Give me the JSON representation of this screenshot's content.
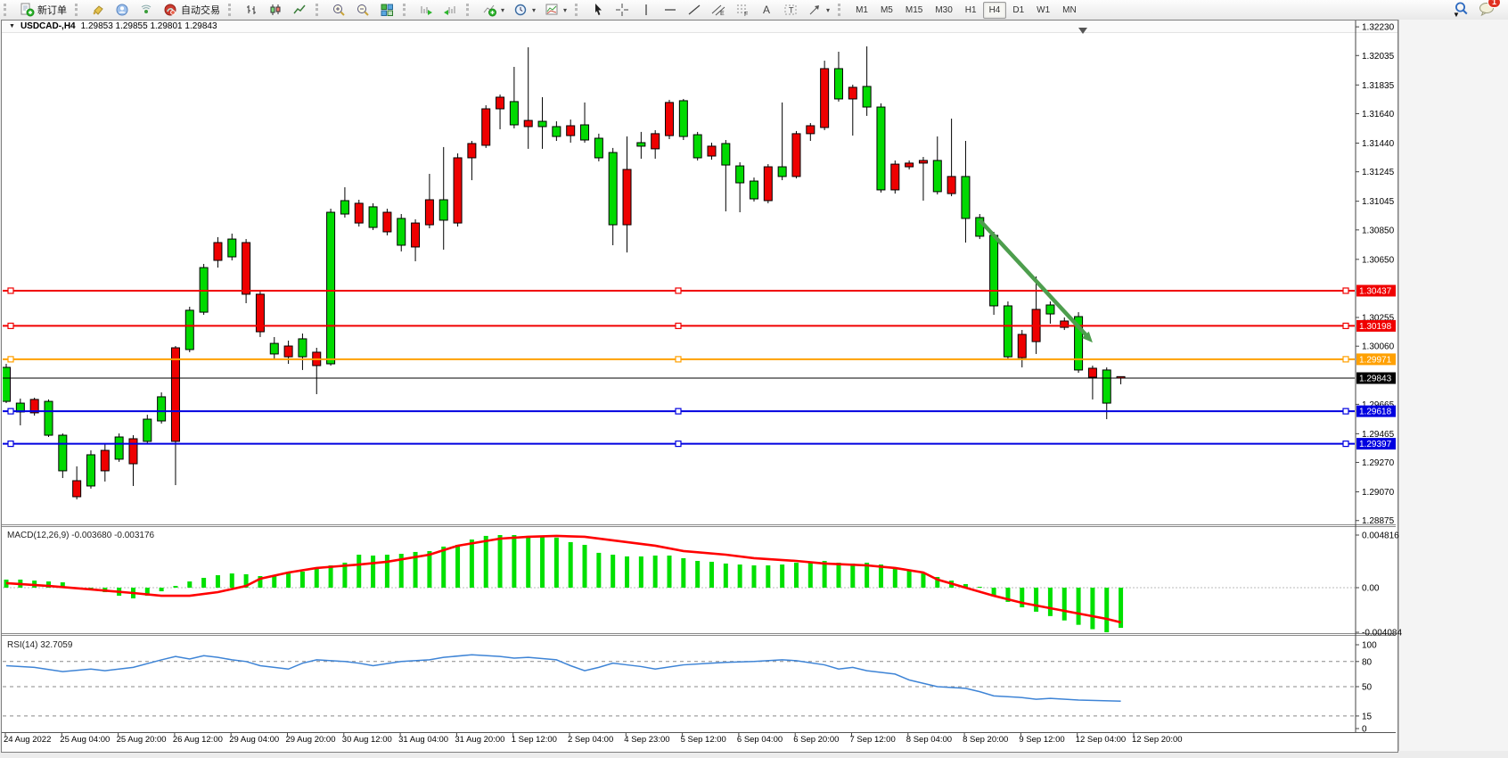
{
  "toolbar": {
    "groups": [
      {
        "items": [
          {
            "name": "new-order-button",
            "icon": "new-order",
            "label": "新订单"
          }
        ]
      },
      {
        "items": [
          {
            "name": "styler-button",
            "icon": "paint"
          },
          {
            "name": "profile-button",
            "icon": "profile"
          },
          {
            "name": "signals-button",
            "icon": "signal"
          },
          {
            "name": "autotrading-button",
            "icon": "autotrade",
            "label": "自动交易"
          }
        ]
      },
      {
        "items": [
          {
            "name": "bar-chart-button",
            "icon": "bars"
          },
          {
            "name": "candle-chart-button",
            "icon": "candles"
          },
          {
            "name": "line-chart-button",
            "icon": "linechart"
          }
        ]
      },
      {
        "items": [
          {
            "name": "zoom-in-button",
            "icon": "zoomin"
          },
          {
            "name": "zoom-out-button",
            "icon": "zoomout"
          },
          {
            "name": "tile-windows-button",
            "icon": "tile"
          }
        ]
      },
      {
        "items": [
          {
            "name": "auto-scroll-button",
            "icon": "autoscroll"
          },
          {
            "name": "chart-shift-button",
            "icon": "shift"
          }
        ]
      },
      {
        "items": [
          {
            "name": "indicators-button",
            "icon": "indicators",
            "caret": true
          },
          {
            "name": "periods-button",
            "icon": "clock",
            "caret": true
          },
          {
            "name": "templates-button",
            "icon": "template",
            "caret": true
          }
        ]
      },
      {
        "items": [
          {
            "name": "cursor-button",
            "icon": "cursor"
          },
          {
            "name": "crosshair-button",
            "icon": "crosshair"
          },
          {
            "name": "vline-button",
            "icon": "vline"
          },
          {
            "name": "hline-button",
            "icon": "hline"
          },
          {
            "name": "trendline-button",
            "icon": "trend"
          },
          {
            "name": "channel-button",
            "icon": "channel"
          },
          {
            "name": "fibonacci-button",
            "icon": "fibo"
          },
          {
            "name": "text-button",
            "icon": "textA"
          },
          {
            "name": "label-button",
            "icon": "labelT"
          },
          {
            "name": "shapes-button",
            "icon": "shapes",
            "caret": true
          }
        ]
      }
    ],
    "timeframes": [
      "M1",
      "M5",
      "M15",
      "M30",
      "H1",
      "H4",
      "D1",
      "W1",
      "MN"
    ],
    "active_timeframe": "H4",
    "search_badge": "1"
  },
  "window": {
    "symbol_title": "USDCAD-,H4",
    "quote_line": "1.29853 1.29855 1.29801 1.29843"
  },
  "chart_data": {
    "type": "candlestick",
    "symbol": "USDCAD-",
    "timeframe": "H4",
    "ohlc": [
      [
        1.29685,
        1.2994,
        1.29673,
        1.29916
      ],
      [
        1.29613,
        1.29704,
        1.29522,
        1.29673
      ],
      [
        1.29698,
        1.2971,
        1.29588,
        1.29607
      ],
      [
        1.29455,
        1.29698,
        1.29443,
        1.29685
      ],
      [
        1.29213,
        1.29467,
        1.29164,
        1.29455
      ],
      [
        1.29146,
        1.29243,
        1.29019,
        1.29037
      ],
      [
        1.2911,
        1.29352,
        1.29092,
        1.29322
      ],
      [
        1.29352,
        1.29395,
        1.2914,
        1.29213
      ],
      [
        1.29292,
        1.29467,
        1.29274,
        1.29443
      ],
      [
        1.29431,
        1.29455,
        1.2911,
        1.29261
      ],
      [
        1.29413,
        1.29594,
        1.29395,
        1.29564
      ],
      [
        1.29552,
        1.29746,
        1.29534,
        1.29716
      ],
      [
        1.30049,
        1.30061,
        1.29116,
        1.29413
      ],
      [
        1.30037,
        1.30328,
        1.30019,
        1.30304
      ],
      [
        1.30291,
        1.30619,
        1.30273,
        1.30594
      ],
      [
        1.30764,
        1.30801,
        1.30594,
        1.30643
      ],
      [
        1.30667,
        1.30825,
        1.30643,
        1.30788
      ],
      [
        1.30764,
        1.30788,
        1.30352,
        1.30413
      ],
      [
        1.30413,
        1.30437,
        1.30122,
        1.30158
      ],
      [
        1.30007,
        1.30122,
        1.29976,
        1.30079
      ],
      [
        1.30061,
        1.30098,
        1.2994,
        1.29988
      ],
      [
        1.29988,
        1.30146,
        1.29898,
        1.3011
      ],
      [
        1.30019,
        1.30049,
        1.29734,
        1.29928
      ],
      [
        1.2994,
        1.30994,
        1.29928,
        1.3097
      ],
      [
        1.30958,
        1.3114,
        1.30934,
        1.31049
      ],
      [
        1.31031,
        1.31055,
        1.30873,
        1.30897
      ],
      [
        1.30867,
        1.31031,
        1.30849,
        1.31007
      ],
      [
        1.3097,
        1.30994,
        1.30813,
        1.30837
      ],
      [
        1.30746,
        1.30958,
        1.30704,
        1.30928
      ],
      [
        1.30897,
        1.30922,
        1.30637,
        1.30734
      ],
      [
        1.31055,
        1.31231,
        1.30861,
        1.30885
      ],
      [
        1.30916,
        1.31413,
        1.30716,
        1.31055
      ],
      [
        1.3134,
        1.3137,
        1.30873,
        1.30897
      ],
      [
        1.31437,
        1.31455,
        1.31188,
        1.3134
      ],
      [
        1.31673,
        1.31697,
        1.31407,
        1.31425
      ],
      [
        1.31752,
        1.3177,
        1.31534,
        1.31673
      ],
      [
        1.31564,
        1.31958,
        1.3154,
        1.31722
      ],
      [
        1.31594,
        1.32091,
        1.31401,
        1.31552
      ],
      [
        1.31552,
        1.31752,
        1.31401,
        1.31588
      ],
      [
        1.31485,
        1.31588,
        1.31455,
        1.31552
      ],
      [
        1.31558,
        1.316,
        1.31443,
        1.31491
      ],
      [
        1.31461,
        1.31716,
        1.31443,
        1.31564
      ],
      [
        1.3134,
        1.31504,
        1.31316,
        1.31473
      ],
      [
        1.30885,
        1.31407,
        1.30746,
        1.31376
      ],
      [
        1.31261,
        1.31485,
        1.30697,
        1.30885
      ],
      [
        1.31419,
        1.31516,
        1.31334,
        1.31443
      ],
      [
        1.31504,
        1.31528,
        1.31334,
        1.31401
      ],
      [
        1.31716,
        1.31734,
        1.31467,
        1.31491
      ],
      [
        1.31485,
        1.3174,
        1.31461,
        1.31728
      ],
      [
        1.3134,
        1.31516,
        1.31322,
        1.31497
      ],
      [
        1.31419,
        1.31443,
        1.31328,
        1.31352
      ],
      [
        1.31291,
        1.31461,
        1.30976,
        1.31437
      ],
      [
        1.3117,
        1.3131,
        1.3097,
        1.31285
      ],
      [
        1.31061,
        1.31206,
        1.31043,
        1.31182
      ],
      [
        1.31279,
        1.31297,
        1.31031,
        1.31049
      ],
      [
        1.31213,
        1.31716,
        1.31188,
        1.31279
      ],
      [
        1.31504,
        1.31522,
        1.312,
        1.31213
      ],
      [
        1.31558,
        1.31576,
        1.31455,
        1.31504
      ],
      [
        1.31946,
        1.32,
        1.31528,
        1.31546
      ],
      [
        1.3174,
        1.32061,
        1.31722,
        1.31946
      ],
      [
        1.31819,
        1.31837,
        1.31491,
        1.3174
      ],
      [
        1.31685,
        1.32097,
        1.31625,
        1.31825
      ],
      [
        1.31122,
        1.3171,
        1.31104,
        1.31685
      ],
      [
        1.31297,
        1.31322,
        1.31097,
        1.31122
      ],
      [
        1.31304,
        1.31322,
        1.31261,
        1.31279
      ],
      [
        1.31322,
        1.31346,
        1.31049,
        1.31304
      ],
      [
        1.3111,
        1.31485,
        1.31091,
        1.31322
      ],
      [
        1.31213,
        1.31606,
        1.31079,
        1.31097
      ],
      [
        1.30928,
        1.31455,
        1.30764,
        1.31213
      ],
      [
        1.30807,
        1.30958,
        1.30788,
        1.30934
      ],
      [
        1.30334,
        1.30837,
        1.30273,
        1.30813
      ],
      [
        1.29988,
        1.30364,
        1.2997,
        1.30334
      ],
      [
        1.3014,
        1.3017,
        1.29916,
        1.29982
      ],
      [
        1.3031,
        1.30534,
        1.30007,
        1.30091
      ],
      [
        1.30279,
        1.30364,
        1.30213,
        1.3034
      ],
      [
        1.30231,
        1.30255,
        1.3017,
        1.30188
      ],
      [
        1.29898,
        1.30291,
        1.29879,
        1.30261
      ],
      [
        1.2991,
        1.29928,
        1.29698,
        1.29849
      ],
      [
        1.29673,
        1.29916,
        1.29564,
        1.29898
      ],
      [
        1.29853,
        1.29855,
        1.29801,
        1.29843
      ]
    ],
    "current_price": 1.29843,
    "price_axis_ticks": [
      "1.32230",
      "1.32035",
      "1.31835",
      "1.31640",
      "1.31440",
      "1.31245",
      "1.31045",
      "1.30850",
      "1.30650",
      "1.30255",
      "1.30060",
      "1.29665",
      "1.29465",
      "1.29270",
      "1.29070",
      "1.28875"
    ],
    "price_tags": [
      {
        "value": "1.30437",
        "color": "#F00000"
      },
      {
        "value": "1.30198",
        "color": "#F00000"
      },
      {
        "value": "1.29971",
        "color": "#FFA000"
      },
      {
        "value": "1.29843",
        "color": "#000000"
      },
      {
        "value": "1.29618",
        "color": "#0000E0"
      },
      {
        "value": "1.29397",
        "color": "#0000E0"
      }
    ],
    "hlines": [
      {
        "price": 1.30437,
        "color": "#F00000"
      },
      {
        "price": 1.30198,
        "color": "#F00000"
      },
      {
        "price": 1.29971,
        "color": "#FFA000"
      },
      {
        "price": 1.29618,
        "color": "#0000E0"
      },
      {
        "price": 1.29397,
        "color": "#0000E0"
      }
    ],
    "arrow": {
      "from_bar": 69,
      "from_price": 1.30916,
      "to_bar": 77,
      "to_price": 1.30085,
      "color": "#4D9E4D"
    },
    "macd": {
      "label": "MACD(12,26,9) -0.003680 -0.003176",
      "axis_labels": [
        "0.004816",
        "0.00",
        "-0.004084"
      ],
      "axis_values": [
        0.004816,
        0,
        -0.004084
      ],
      "histogram": [
        0.00074,
        0.00074,
        0.00065,
        0.00057,
        0.00049,
        -8e-05,
        -0.00016,
        -0.00041,
        -0.00074,
        -0.00098,
        -0.00074,
        -0.00033,
        0.00016,
        0.00057,
        0.0009,
        0.00114,
        0.0013,
        0.00123,
        0.00106,
        0.00114,
        0.0013,
        0.00147,
        0.00172,
        0.00204,
        0.00229,
        0.00302,
        0.00294,
        0.00302,
        0.0031,
        0.00327,
        0.00335,
        0.00376,
        0.00392,
        0.00441,
        0.00474,
        0.004816,
        0.004816,
        0.00474,
        0.00466,
        0.00458,
        0.00417,
        0.00392,
        0.00319,
        0.00302,
        0.00286,
        0.00286,
        0.00294,
        0.00294,
        0.0027,
        0.00245,
        0.00237,
        0.00221,
        0.00212,
        0.00204,
        0.00204,
        0.00212,
        0.00229,
        0.00237,
        0.00245,
        0.00229,
        0.00221,
        0.00229,
        0.00212,
        0.00188,
        0.00163,
        0.0013,
        0.00098,
        0.00065,
        0.00033,
        8e-05,
        -0.0008,
        -0.0013,
        -0.0018,
        -0.0022,
        -0.0026,
        -0.003,
        -0.0034,
        -0.0038,
        -0.004084,
        -0.00368
      ],
      "signal": [
        [
          0,
          0.00041
        ],
        [
          3,
          0.00016
        ],
        [
          6,
          -0.00016
        ],
        [
          9,
          -0.00049
        ],
        [
          11,
          -0.00074
        ],
        [
          13,
          -0.00074
        ],
        [
          15,
          -0.00041
        ],
        [
          17,
          0.00016
        ],
        [
          18,
          0.00082
        ],
        [
          20,
          0.00139
        ],
        [
          22,
          0.0018
        ],
        [
          25,
          0.00212
        ],
        [
          27,
          0.00237
        ],
        [
          30,
          0.00302
        ],
        [
          32,
          0.00384
        ],
        [
          35,
          0.00449
        ],
        [
          37,
          0.00466
        ],
        [
          39,
          0.00474
        ],
        [
          41,
          0.00466
        ],
        [
          43,
          0.00433
        ],
        [
          46,
          0.00384
        ],
        [
          48,
          0.00335
        ],
        [
          51,
          0.00302
        ],
        [
          53,
          0.0027
        ],
        [
          56,
          0.00245
        ],
        [
          58,
          0.00221
        ],
        [
          61,
          0.00204
        ],
        [
          63,
          0.0018
        ],
        [
          65,
          0.00139
        ],
        [
          66,
          0.00074
        ],
        [
          68,
          0
        ],
        [
          70,
          -0.00074
        ],
        [
          72,
          -0.00139
        ],
        [
          74,
          -0.00188
        ],
        [
          76,
          -0.00237
        ],
        [
          78,
          -0.00286
        ],
        [
          79,
          -0.003176
        ]
      ]
    },
    "rsi": {
      "label": "RSI(14) 32.7059",
      "value": 32.7059,
      "axis_labels": [
        "100",
        "80",
        "50",
        "15",
        "0"
      ],
      "axis_values": [
        100,
        80,
        50,
        15,
        0
      ],
      "dashed_levels": [
        80,
        50,
        15
      ],
      "points": [
        [
          0,
          75
        ],
        [
          2,
          73
        ],
        [
          4,
          68
        ],
        [
          6,
          71
        ],
        [
          7,
          69
        ],
        [
          9,
          73
        ],
        [
          11,
          82
        ],
        [
          12,
          86
        ],
        [
          13,
          83
        ],
        [
          14,
          87
        ],
        [
          15,
          85
        ],
        [
          16,
          82
        ],
        [
          17,
          80
        ],
        [
          18,
          75
        ],
        [
          20,
          71
        ],
        [
          21,
          78
        ],
        [
          22,
          82
        ],
        [
          24,
          80
        ],
        [
          25,
          78
        ],
        [
          26,
          75
        ],
        [
          28,
          80
        ],
        [
          30,
          82
        ],
        [
          31,
          85
        ],
        [
          33,
          88
        ],
        [
          35,
          86
        ],
        [
          36,
          84
        ],
        [
          37,
          85
        ],
        [
          39,
          82
        ],
        [
          40,
          75
        ],
        [
          41,
          69
        ],
        [
          42,
          73
        ],
        [
          43,
          78
        ],
        [
          44,
          76
        ],
        [
          45,
          74
        ],
        [
          46,
          71
        ],
        [
          48,
          76
        ],
        [
          50,
          78
        ],
        [
          51,
          79
        ],
        [
          53,
          80
        ],
        [
          55,
          82
        ],
        [
          56,
          81
        ],
        [
          58,
          76
        ],
        [
          59,
          71
        ],
        [
          60,
          73
        ],
        [
          61,
          69
        ],
        [
          63,
          65
        ],
        [
          64,
          58
        ],
        [
          65,
          54
        ],
        [
          66,
          50
        ],
        [
          68,
          48
        ],
        [
          69,
          44
        ],
        [
          70,
          39
        ],
        [
          72,
          37
        ],
        [
          73,
          35
        ],
        [
          74,
          36
        ],
        [
          76,
          34
        ],
        [
          79,
          32.7
        ]
      ]
    },
    "date_labels": [
      "24 Aug 2022",
      "25 Aug 04:00",
      "25 Aug 20:00",
      "26 Aug 12:00",
      "29 Aug 04:00",
      "29 Aug 20:00",
      "30 Aug 12:00",
      "31 Aug 04:00",
      "31 Aug 20:00",
      "1 Sep 12:00",
      "2 Sep 04:00",
      "4 Sep 23:00",
      "5 Sep 12:00",
      "6 Sep 04:00",
      "6 Sep 20:00",
      "7 Sep 12:00",
      "8 Sep 04:00",
      "8 Sep 20:00",
      "9 Sep 12:00",
      "12 Sep 04:00",
      "12 Sep 20:00"
    ],
    "colors": {
      "bull": "#00DA00",
      "bear": "#EE0000",
      "wick": "#000000",
      "macd_hist": "#00E000",
      "macd_signal": "#FF0000",
      "rsi_line": "#3E84D6"
    }
  }
}
